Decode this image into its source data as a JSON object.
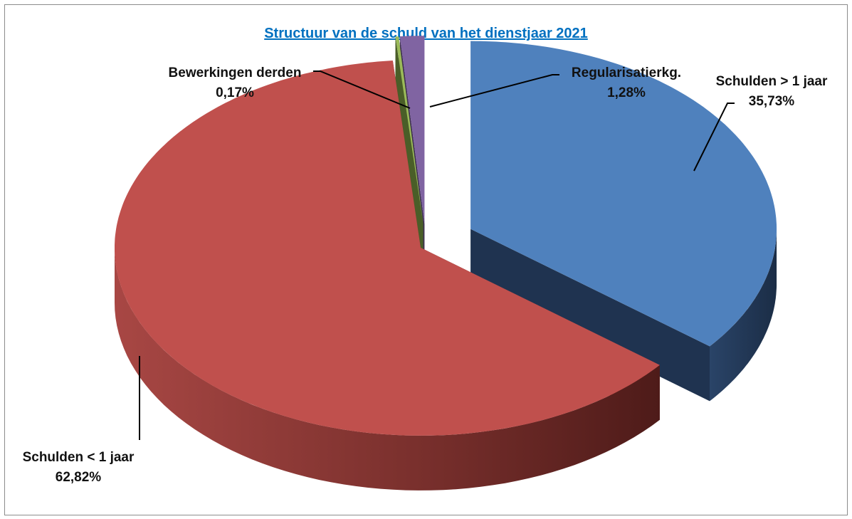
{
  "chart_data": {
    "type": "pie",
    "title": "Structuur van de schuld van het dienstjaar 2021",
    "title_color": "#0070c0",
    "slices": [
      {
        "name": "Schulden > 1 jaar",
        "value": 35.73,
        "label": "35,73%",
        "color": "#4f81bd",
        "side_color": "#1f3350"
      },
      {
        "name": "Schulden < 1 jaar",
        "value": 62.82,
        "label": "62,82%",
        "color": "#c0504d",
        "side_color": "#6b2422"
      },
      {
        "name": "Bewerkingen derden",
        "value": 0.17,
        "label": "0,17%",
        "color": "#9bbb59",
        "side_color": "#4a5e28"
      },
      {
        "name": "Regularisatierkg.",
        "value": 1.28,
        "label": "1,28%",
        "color": "#8064a2",
        "side_color": "#3e2f52"
      }
    ],
    "legend": "none",
    "style": "3d-exploded"
  }
}
